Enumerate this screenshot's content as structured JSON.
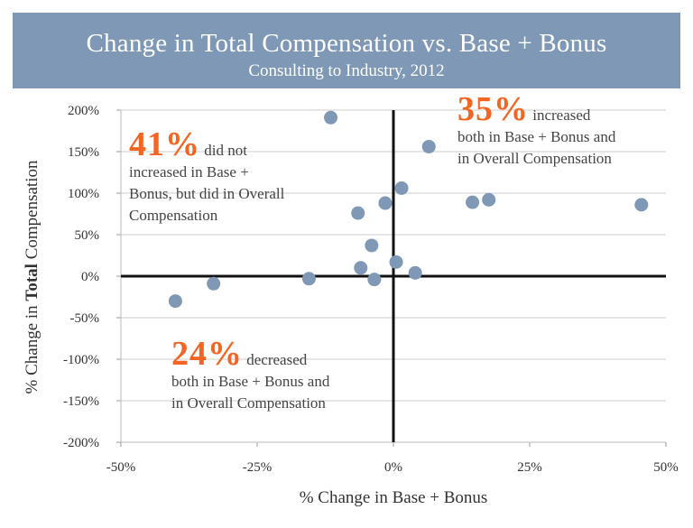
{
  "header": {
    "title": "Change in Total Compensation vs. Base + Bonus",
    "subtitle": "Consulting to Industry, 2012"
  },
  "annotations": {
    "q2": {
      "pct": "41%",
      "text_a": " did not",
      "text_b": "increased in Base +",
      "text_c": "Bonus, but did in Overall",
      "text_d": "Compensation"
    },
    "q1": {
      "pct": "35%",
      "text_a": " increased",
      "text_b": "both in Base + Bonus and",
      "text_c": "in Overall Compensation"
    },
    "q3": {
      "pct": "24%",
      "text_a": " decreased",
      "text_b": "both in Base + Bonus and",
      "text_c": "in Overall Compensation"
    }
  },
  "colors": {
    "marker": "#7f98b5",
    "accent": "#f26522",
    "header_bg": "#7f98b5"
  },
  "chart_data": {
    "type": "scatter",
    "xlabel": "% Change in Base + Bonus",
    "ylabel_pre": "% Change in ",
    "ylabel_bold": "Total",
    "ylabel_post": " Compensation",
    "xlim": [
      -50,
      50
    ],
    "ylim": [
      -200,
      200
    ],
    "xticks": [
      -50,
      -25,
      0,
      25,
      50
    ],
    "xtick_labels": [
      "-50%",
      "-25%",
      "0%",
      "25%",
      "50%"
    ],
    "yticks": [
      200,
      150,
      100,
      50,
      0,
      -50,
      -100,
      -150,
      -200
    ],
    "ytick_labels": [
      "200%",
      "150%",
      "100%",
      "50%",
      "0%",
      "-50%",
      "-100%",
      "-150%",
      "-200%"
    ],
    "grid": "horizontal",
    "points": [
      {
        "x": -11.5,
        "y": 191
      },
      {
        "x": 6.5,
        "y": 156
      },
      {
        "x": 1.5,
        "y": 106
      },
      {
        "x": -1.5,
        "y": 88
      },
      {
        "x": -6.5,
        "y": 76
      },
      {
        "x": 14.5,
        "y": 89
      },
      {
        "x": 17.5,
        "y": 92
      },
      {
        "x": 45.5,
        "y": 86
      },
      {
        "x": -4.0,
        "y": 37
      },
      {
        "x": -6.0,
        "y": 10
      },
      {
        "x": 0.5,
        "y": 17
      },
      {
        "x": 4.0,
        "y": 4
      },
      {
        "x": -3.5,
        "y": -4
      },
      {
        "x": -15.5,
        "y": -3
      },
      {
        "x": -33.0,
        "y": -9
      },
      {
        "x": -40.0,
        "y": -30
      }
    ]
  }
}
